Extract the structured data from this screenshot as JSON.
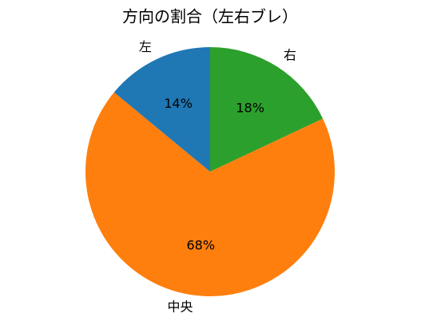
{
  "chart_data": {
    "type": "pie",
    "title": "方向の割合（左右ブレ）",
    "categories": [
      "右",
      "中央",
      "左"
    ],
    "values": [
      18,
      68,
      14
    ],
    "value_labels": [
      "18%",
      "68%",
      "14%"
    ],
    "colors": [
      "#2ca02c",
      "#ff7f0e",
      "#1f77b4"
    ]
  }
}
